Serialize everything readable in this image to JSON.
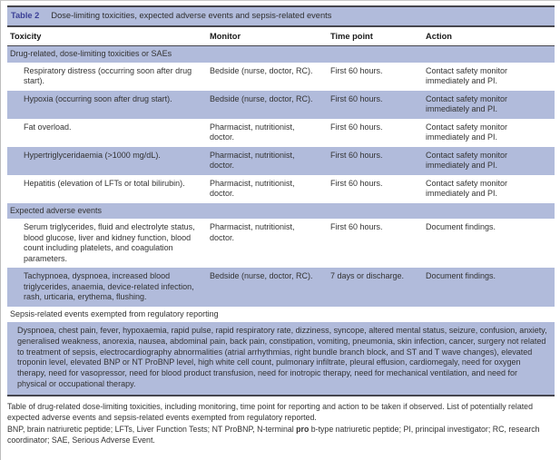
{
  "colors": {
    "band_fill": "#b1bbdb",
    "rule": "#46464e",
    "title_label_color": "#3b3f96"
  },
  "table": {
    "title_label": "Table 2",
    "title": "Dose-limiting toxicities, expected adverse events and sepsis-related events",
    "columns": [
      "Toxicity",
      "Monitor",
      "Time point",
      "Action"
    ],
    "rows": [
      {
        "type": "section",
        "label": "Drug-related, dose-limiting toxicities or SAEs"
      },
      {
        "type": "data",
        "toxicity": "Respiratory distress (occurring soon after drug start).",
        "monitor": "Bedside (nurse, doctor, RC).",
        "timepoint": "First 60 hours.",
        "action": "Contact safety monitor immediately and PI."
      },
      {
        "type": "data",
        "toxicity": "Hypoxia (occurring soon after drug start).",
        "monitor": "Bedside (nurse, doctor, RC).",
        "timepoint": "First 60 hours.",
        "action": "Contact safety monitor immediately and PI."
      },
      {
        "type": "data",
        "toxicity": "Fat overload.",
        "monitor": "Pharmacist, nutritionist, doctor.",
        "timepoint": "First 60 hours.",
        "action": "Contact safety monitor immediately and PI."
      },
      {
        "type": "data",
        "toxicity": "Hypertriglyceridaemia (>1000 mg/dL).",
        "monitor": "Pharmacist, nutritionist, doctor.",
        "timepoint": "First 60 hours.",
        "action": "Contact safety monitor immediately and PI."
      },
      {
        "type": "data",
        "toxicity": "Hepatitis (elevation of LFTs or total bilirubin).",
        "monitor": "Pharmacist, nutritionist, doctor.",
        "timepoint": "First 60 hours.",
        "action": "Contact safety monitor immediately and PI."
      },
      {
        "type": "section",
        "label": "Expected adverse events"
      },
      {
        "type": "data",
        "toxicity": "Serum triglycerides, fluid and electrolyte status, blood glucose, liver and kidney function, blood count including platelets, and coagulation parameters.",
        "monitor": "Pharmacist, nutritionist, doctor.",
        "timepoint": "First 60 hours.",
        "action": "Document findings."
      },
      {
        "type": "data",
        "toxicity": "Tachypnoea, dyspnoea, increased blood triglycerides, anaemia, device-related infection, rash, urticaria, erythema, flushing.",
        "monitor": "Bedside (nurse, doctor, RC).",
        "timepoint": "7 days or discharge.",
        "action": "Document findings."
      },
      {
        "type": "section",
        "label": "Sepsis-related events exempted from regulatory reporting"
      },
      {
        "type": "paragraph",
        "text": "Dyspnoea, chest pain, fever, hypoxaemia, rapid pulse, rapid respiratory rate, dizziness, syncope, altered mental status, seizure, confusion, anxiety, generalised weakness, anorexia, nausea, abdominal pain, back pain, constipation, vomiting, pneumonia, skin infection, cancer, surgery not related to treatment of sepsis, electrocardiography abnormalities (atrial arrhythmias, right bundle branch block, and ST and T wave changes), elevated troponin level, elevated BNP or NT ProBNP level, high white cell count, pulmonary infiltrate, pleural effusion, cardiomegaly, need for oxygen therapy, need for vasopressor, need for blood product transfusion, need for inotropic therapy, need for mechanical ventilation, and need for physical or occupational therapy."
      }
    ]
  },
  "footer": {
    "caption": "Table of drug-related dose-limiting toxicities, including monitoring, time point for reporting and action to be taken if observed. List of potentially related expected adverse events and sepsis-related events exempted from regulatory reported.",
    "abbrev_pre": "BNP, brain natriuretic peptide; LFTs, Liver Function Tests; NT ProBNP, N-terminal ",
    "abbrev_bold": "pro",
    "abbrev_post": " b-type natriuretic peptide; PI, principal investigator; RC, research coordinator; SAE, Serious Adverse Event."
  }
}
